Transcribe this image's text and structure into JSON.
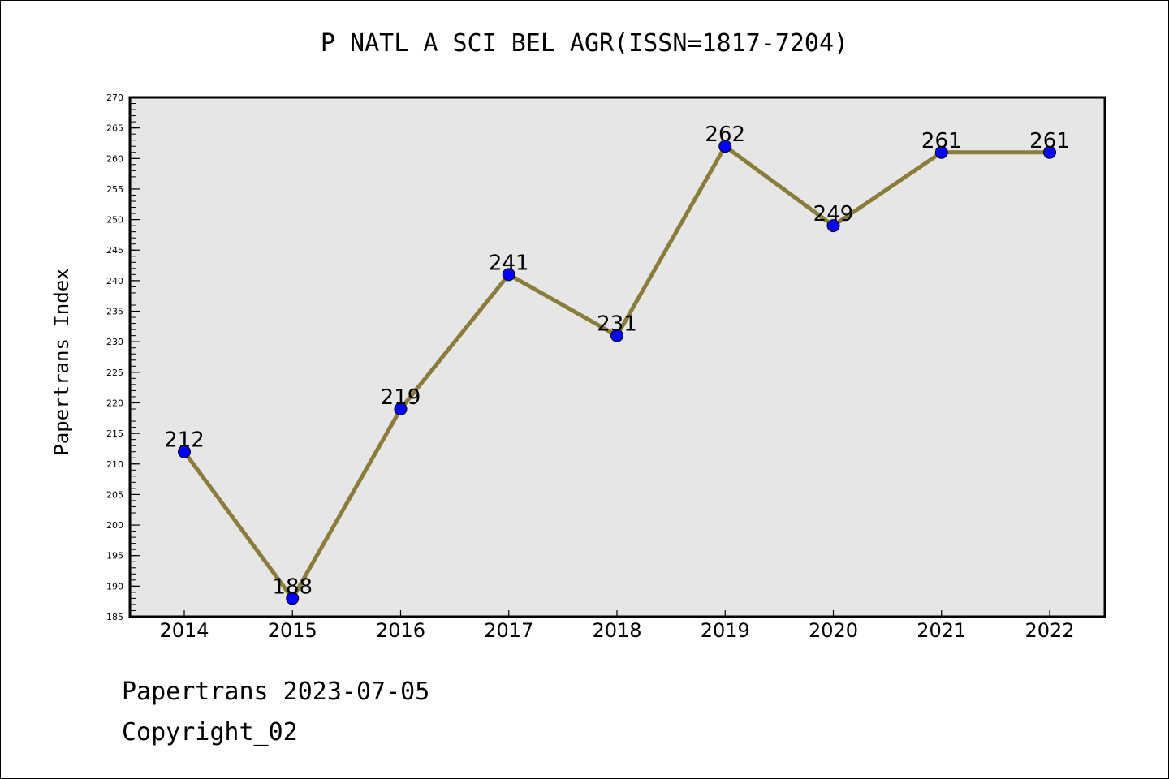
{
  "chart_data": {
    "type": "line",
    "title": "P NATL A SCI BEL AGR(ISSN=1817-7204)",
    "xlabel": "",
    "ylabel": "Papertrans Index",
    "categories": [
      "2014",
      "2015",
      "2016",
      "2017",
      "2018",
      "2019",
      "2020",
      "2021",
      "2022"
    ],
    "series": [
      {
        "values": [
          212,
          188,
          219,
          241,
          231,
          262,
          249,
          261,
          261
        ]
      }
    ],
    "ylim": [
      185,
      270
    ],
    "yticks": [
      185,
      190,
      195,
      200,
      205,
      210,
      215,
      220,
      225,
      230,
      235,
      240,
      245,
      250,
      255,
      260,
      265,
      270
    ],
    "grid": false,
    "line_color": "#8c7c3c",
    "marker_color": "#0000ff",
    "plot_background": "#e6e6e6"
  },
  "footer": {
    "line1": "Papertrans 2023-07-05",
    "line2": "Copyright_02"
  }
}
